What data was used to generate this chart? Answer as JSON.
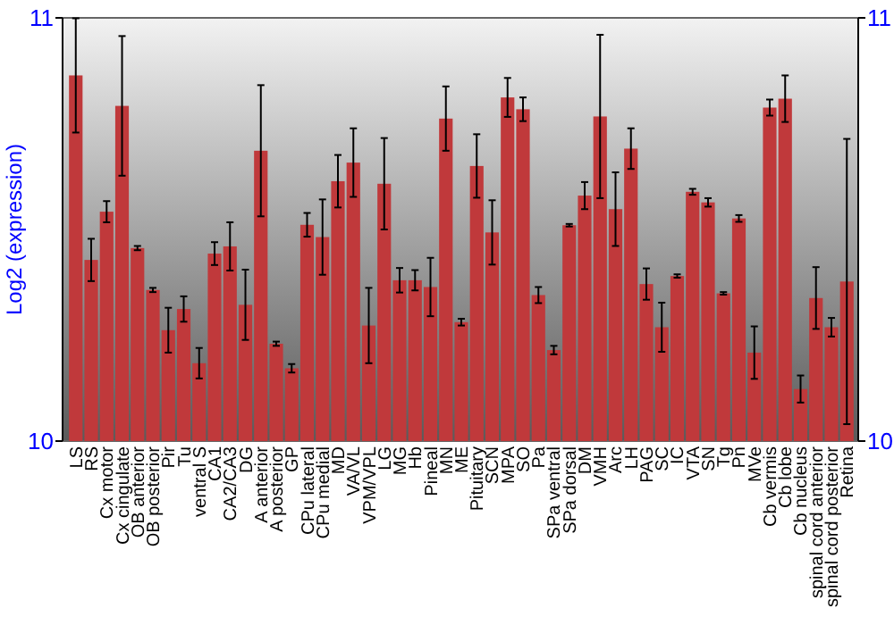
{
  "chart_data": {
    "type": "bar",
    "ylabel": "Log2 (expression)",
    "categories": [
      "LS",
      "RS",
      "Cx motor",
      "Cx cingulate",
      "OB anterior",
      "OB posterior",
      "Pir",
      "Tu",
      "ventral S",
      "CA1",
      "CA2/CA3",
      "DG",
      "A anterior",
      "A posterior",
      "GP",
      "CPu lateral",
      "CPu medial",
      "MD",
      "VA/VL",
      "VPM/VPL",
      "LG",
      "MG",
      "Hb",
      "Pineal",
      "MN",
      "ME",
      "Pituitary",
      "SCN",
      "MPA",
      "SO",
      "Pa",
      "SPa ventral",
      "SPa dorsal",
      "DM",
      "VMH",
      "Arc",
      "LH",
      "PAG",
      "SC",
      "IC",
      "VTA",
      "SN",
      "Tg",
      "Pn",
      "MVe",
      "Cb vermis",
      "Cb lobe",
      "Cb nucleus",
      "spinal cord anterior",
      "spinal cord posterior",
      "Retina"
    ],
    "values": [
      10.864,
      10.428,
      10.542,
      10.792,
      10.456,
      10.357,
      10.262,
      10.312,
      10.184,
      10.443,
      10.46,
      10.322,
      10.686,
      10.23,
      10.172,
      10.511,
      10.482,
      10.614,
      10.658,
      10.273,
      10.608,
      10.38,
      10.38,
      10.364,
      10.762,
      10.281,
      10.65,
      10.493,
      10.812,
      10.784,
      10.345,
      10.215,
      10.51,
      10.58,
      10.767,
      10.548,
      10.691,
      10.371,
      10.269,
      10.39,
      10.589,
      10.564,
      10.349,
      10.526,
      10.209,
      10.788,
      10.809,
      10.123,
      10.338,
      10.269,
      10.377
    ],
    "errors": [
      0.135,
      0.05,
      0.025,
      0.165,
      0.005,
      0.005,
      0.053,
      0.03,
      0.036,
      0.027,
      0.057,
      0.083,
      0.155,
      0.005,
      0.01,
      0.028,
      0.089,
      0.062,
      0.081,
      0.089,
      0.108,
      0.029,
      0.024,
      0.069,
      0.076,
      0.008,
      0.075,
      0.076,
      0.046,
      0.028,
      0.019,
      0.01,
      0.003,
      0.032,
      0.193,
      0.087,
      0.048,
      0.037,
      0.058,
      0.004,
      0.007,
      0.01,
      0.003,
      0.008,
      0.062,
      0.019,
      0.055,
      0.032,
      0.073,
      0.022,
      0.337
    ],
    "color": "#c0393b",
    "ylim": [
      10,
      11
    ],
    "yticks": [
      10,
      11
    ],
    "y2lim": [
      10,
      11
    ],
    "y2ticks": [
      10,
      11
    ],
    "grid": false
  }
}
